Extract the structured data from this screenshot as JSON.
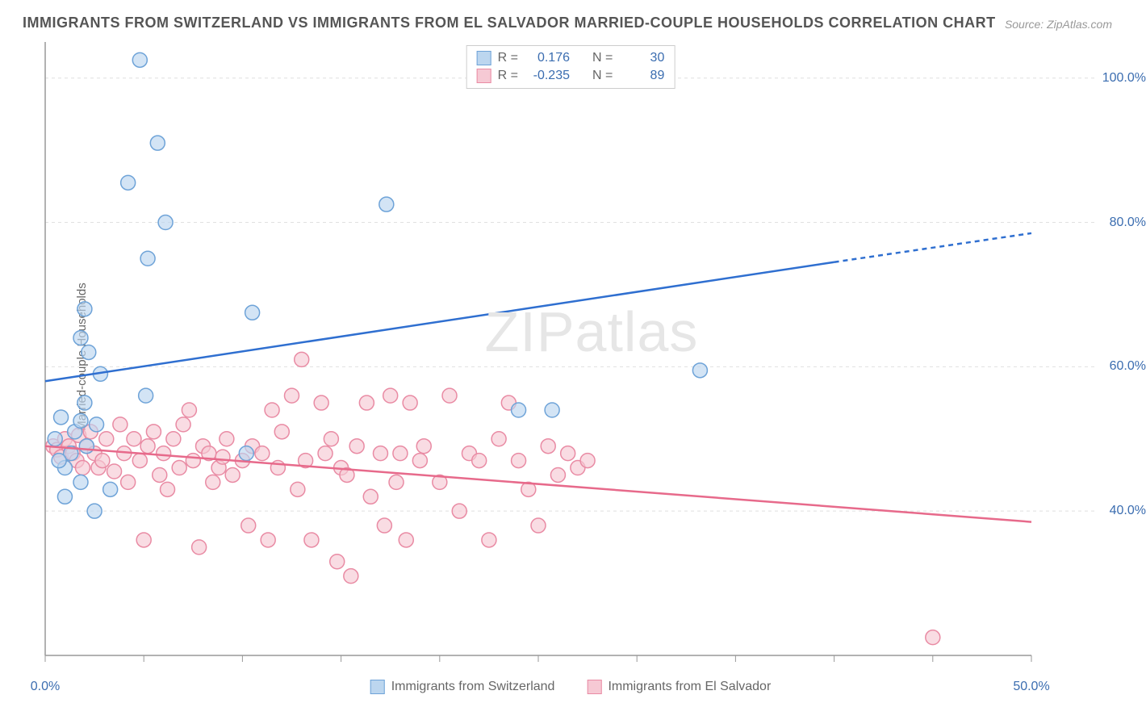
{
  "title": "IMMIGRANTS FROM SWITZERLAND VS IMMIGRANTS FROM EL SALVADOR MARRIED-COUPLE HOUSEHOLDS CORRELATION CHART",
  "source": "Source: ZipAtlas.com",
  "y_axis_label": "Married-couple Households",
  "watermark": "ZIPatlas",
  "chart": {
    "type": "scatter",
    "xlim": [
      0,
      50
    ],
    "ylim": [
      20,
      105
    ],
    "x_ticks": [
      0,
      5,
      10,
      15,
      20,
      25,
      30,
      35,
      40,
      45,
      50
    ],
    "x_tick_labels": {
      "0": "0.0%",
      "50": "50.0%"
    },
    "y_ticks": [
      40,
      60,
      80,
      100
    ],
    "y_tick_labels": {
      "40": "40.0%",
      "60": "60.0%",
      "80": "80.0%",
      "100": "100.0%"
    },
    "grid_color": "#e0e0e0",
    "axis_color": "#999999",
    "background": "#ffffff",
    "series": [
      {
        "name": "Immigrants from Switzerland",
        "color_fill": "#bcd6ef",
        "color_stroke": "#6ea3d8",
        "r": 0.176,
        "n": 30,
        "marker_radius": 9,
        "trend": {
          "x1": 0,
          "y1": 58,
          "x2": 40,
          "y2": 74.5,
          "extend_x2": 50,
          "extend_y2": 78.5,
          "color": "#2f6fd0",
          "width": 2.5
        },
        "points": [
          [
            4.8,
            102.5
          ],
          [
            5.7,
            91
          ],
          [
            4.2,
            85.5
          ],
          [
            6.1,
            80
          ],
          [
            5.2,
            75
          ],
          [
            17.3,
            82.5
          ],
          [
            10.5,
            67.5
          ],
          [
            2.0,
            68
          ],
          [
            1.8,
            64
          ],
          [
            2.2,
            62
          ],
          [
            2.8,
            59
          ],
          [
            5.1,
            56
          ],
          [
            0.8,
            53
          ],
          [
            1.3,
            48
          ],
          [
            1.5,
            51
          ],
          [
            1.0,
            46
          ],
          [
            1.8,
            44
          ],
          [
            2.6,
            52
          ],
          [
            0.5,
            50
          ],
          [
            1.0,
            42
          ],
          [
            2.1,
            49
          ],
          [
            3.3,
            43
          ],
          [
            2.5,
            40
          ],
          [
            1.8,
            52.5
          ],
          [
            10.2,
            48
          ],
          [
            24.0,
            54
          ],
          [
            25.7,
            54
          ],
          [
            33.2,
            59.5
          ],
          [
            0.7,
            47
          ],
          [
            2.0,
            55
          ]
        ]
      },
      {
        "name": "Immigrants from El Salvador",
        "color_fill": "#f6c9d4",
        "color_stroke": "#e98ba4",
        "r": -0.235,
        "n": 89,
        "marker_radius": 9,
        "trend": {
          "x1": 0,
          "y1": 49,
          "x2": 50,
          "y2": 38.5,
          "color": "#e76a8b",
          "width": 2.5
        },
        "points": [
          [
            0.4,
            49
          ],
          [
            0.6,
            48.5
          ],
          [
            0.8,
            47.5
          ],
          [
            1.0,
            50
          ],
          [
            1.2,
            49
          ],
          [
            1.4,
            48
          ],
          [
            1.6,
            47
          ],
          [
            1.7,
            50.5
          ],
          [
            1.9,
            46
          ],
          [
            2.1,
            49
          ],
          [
            2.3,
            51
          ],
          [
            2.5,
            48
          ],
          [
            2.7,
            46
          ],
          [
            2.9,
            47
          ],
          [
            3.1,
            50
          ],
          [
            3.5,
            45.5
          ],
          [
            3.8,
            52
          ],
          [
            4.0,
            48
          ],
          [
            4.2,
            44
          ],
          [
            4.5,
            50
          ],
          [
            4.8,
            47
          ],
          [
            5.0,
            36
          ],
          [
            5.2,
            49
          ],
          [
            5.5,
            51
          ],
          [
            5.8,
            45
          ],
          [
            6.0,
            48
          ],
          [
            6.2,
            43
          ],
          [
            6.5,
            50
          ],
          [
            6.8,
            46
          ],
          [
            7.0,
            52
          ],
          [
            7.3,
            54
          ],
          [
            7.5,
            47
          ],
          [
            7.8,
            35
          ],
          [
            8.0,
            49
          ],
          [
            8.3,
            48
          ],
          [
            8.5,
            44
          ],
          [
            8.8,
            46
          ],
          [
            9.0,
            47.5
          ],
          [
            9.2,
            50
          ],
          [
            9.5,
            45
          ],
          [
            10.0,
            47
          ],
          [
            10.3,
            38
          ],
          [
            10.5,
            49
          ],
          [
            11.0,
            48
          ],
          [
            11.3,
            36
          ],
          [
            11.5,
            54
          ],
          [
            11.8,
            46
          ],
          [
            12.0,
            51
          ],
          [
            12.5,
            56
          ],
          [
            12.8,
            43
          ],
          [
            13.0,
            61
          ],
          [
            13.2,
            47
          ],
          [
            13.5,
            36
          ],
          [
            14.0,
            55
          ],
          [
            14.2,
            48
          ],
          [
            14.5,
            50
          ],
          [
            14.8,
            33
          ],
          [
            15.0,
            46
          ],
          [
            15.3,
            45
          ],
          [
            15.5,
            31
          ],
          [
            15.8,
            49
          ],
          [
            16.3,
            55
          ],
          [
            16.5,
            42
          ],
          [
            17.0,
            48
          ],
          [
            17.2,
            38
          ],
          [
            17.5,
            56
          ],
          [
            17.8,
            44
          ],
          [
            18.0,
            48
          ],
          [
            18.3,
            36
          ],
          [
            18.5,
            55
          ],
          [
            19.0,
            47
          ],
          [
            19.2,
            49
          ],
          [
            20.0,
            44
          ],
          [
            20.5,
            56
          ],
          [
            21.0,
            40
          ],
          [
            21.5,
            48
          ],
          [
            22.0,
            47
          ],
          [
            22.5,
            36
          ],
          [
            23.0,
            50
          ],
          [
            23.5,
            55
          ],
          [
            24.0,
            47
          ],
          [
            24.5,
            43
          ],
          [
            25.0,
            38
          ],
          [
            25.5,
            49
          ],
          [
            26.0,
            45
          ],
          [
            26.5,
            48
          ],
          [
            27.0,
            46
          ],
          [
            27.5,
            47
          ],
          [
            45.0,
            22.5
          ]
        ]
      }
    ]
  },
  "legend_labels": {
    "r_label": "R =",
    "n_label": "N =",
    "series1_r": "0.176",
    "series1_n": "30",
    "series2_r": "-0.235",
    "series2_n": "89"
  }
}
